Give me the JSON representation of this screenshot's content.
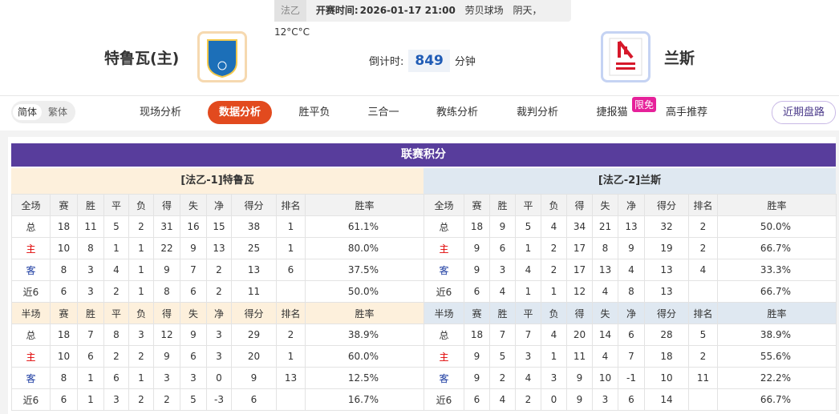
{
  "header": {
    "league": "法乙",
    "kickoff_label": "开赛时间:",
    "kickoff_time": "2026-01-17 21:00",
    "venue": "劳贝球场",
    "weather": "阴天，12°C°C"
  },
  "match": {
    "home_team": "特鲁瓦(主)",
    "away_team": "兰斯",
    "countdown_label": "倒计时:",
    "countdown": "849",
    "countdown_unit": "分钟"
  },
  "nav": {
    "languages": [
      "简体",
      "繁体"
    ],
    "tabs": [
      "现场分析",
      "数据分析",
      "胜平负",
      "三合一",
      "教练分析",
      "裁判分析",
      "捷报猫",
      "高手推荐"
    ],
    "badge": "限免",
    "right_button": "近期盘路"
  },
  "standings": {
    "title": "联赛积分",
    "full_headers": [
      "全场",
      "赛",
      "胜",
      "平",
      "负",
      "得",
      "失",
      "净",
      "得分",
      "排名",
      "胜率"
    ],
    "half_headers": [
      "半场",
      "赛",
      "胜",
      "平",
      "负",
      "得",
      "失",
      "净",
      "得分",
      "排名",
      "胜率"
    ],
    "teams": [
      {
        "title": "[法乙-1]特鲁瓦",
        "full": [
          [
            "总",
            "18",
            "11",
            "5",
            "2",
            "31",
            "16",
            "15",
            "38",
            "1",
            "61.1%"
          ],
          [
            "主",
            "10",
            "8",
            "1",
            "1",
            "22",
            "9",
            "13",
            "25",
            "1",
            "80.0%"
          ],
          [
            "客",
            "8",
            "3",
            "4",
            "1",
            "9",
            "7",
            "2",
            "13",
            "6",
            "37.5%"
          ],
          [
            "近6",
            "6",
            "3",
            "2",
            "1",
            "8",
            "6",
            "2",
            "11",
            null,
            "50.0%"
          ]
        ],
        "half": [
          [
            "总",
            "18",
            "7",
            "8",
            "3",
            "12",
            "9",
            "3",
            "29",
            "2",
            "38.9%"
          ],
          [
            "主",
            "10",
            "6",
            "2",
            "2",
            "9",
            "6",
            "3",
            "20",
            "1",
            "60.0%"
          ],
          [
            "客",
            "8",
            "1",
            "6",
            "1",
            "3",
            "3",
            "0",
            "9",
            "13",
            "12.5%"
          ],
          [
            "近6",
            "6",
            "1",
            "3",
            "2",
            "2",
            "5",
            "-3",
            "6",
            null,
            "16.7%"
          ]
        ]
      },
      {
        "title": "[法乙-2]兰斯",
        "full": [
          [
            "总",
            "18",
            "9",
            "5",
            "4",
            "34",
            "21",
            "13",
            "32",
            "2",
            "50.0%"
          ],
          [
            "主",
            "9",
            "6",
            "1",
            "2",
            "17",
            "8",
            "9",
            "19",
            "2",
            "66.7%"
          ],
          [
            "客",
            "9",
            "3",
            "4",
            "2",
            "17",
            "13",
            "4",
            "13",
            "4",
            "33.3%"
          ],
          [
            "近6",
            "6",
            "4",
            "1",
            "1",
            "12",
            "4",
            "8",
            "13",
            null,
            "66.7%"
          ]
        ],
        "half": [
          [
            "总",
            "18",
            "7",
            "7",
            "4",
            "20",
            "14",
            "6",
            "28",
            "5",
            "38.9%"
          ],
          [
            "主",
            "9",
            "5",
            "3",
            "1",
            "11",
            "4",
            "7",
            "18",
            "2",
            "55.6%"
          ],
          [
            "客",
            "9",
            "2",
            "4",
            "3",
            "9",
            "10",
            "-1",
            "10",
            "11",
            "22.2%"
          ],
          [
            "近6",
            "6",
            "4",
            "2",
            "0",
            "9",
            "3",
            "6",
            "14",
            null,
            "66.7%"
          ]
        ]
      }
    ]
  }
}
